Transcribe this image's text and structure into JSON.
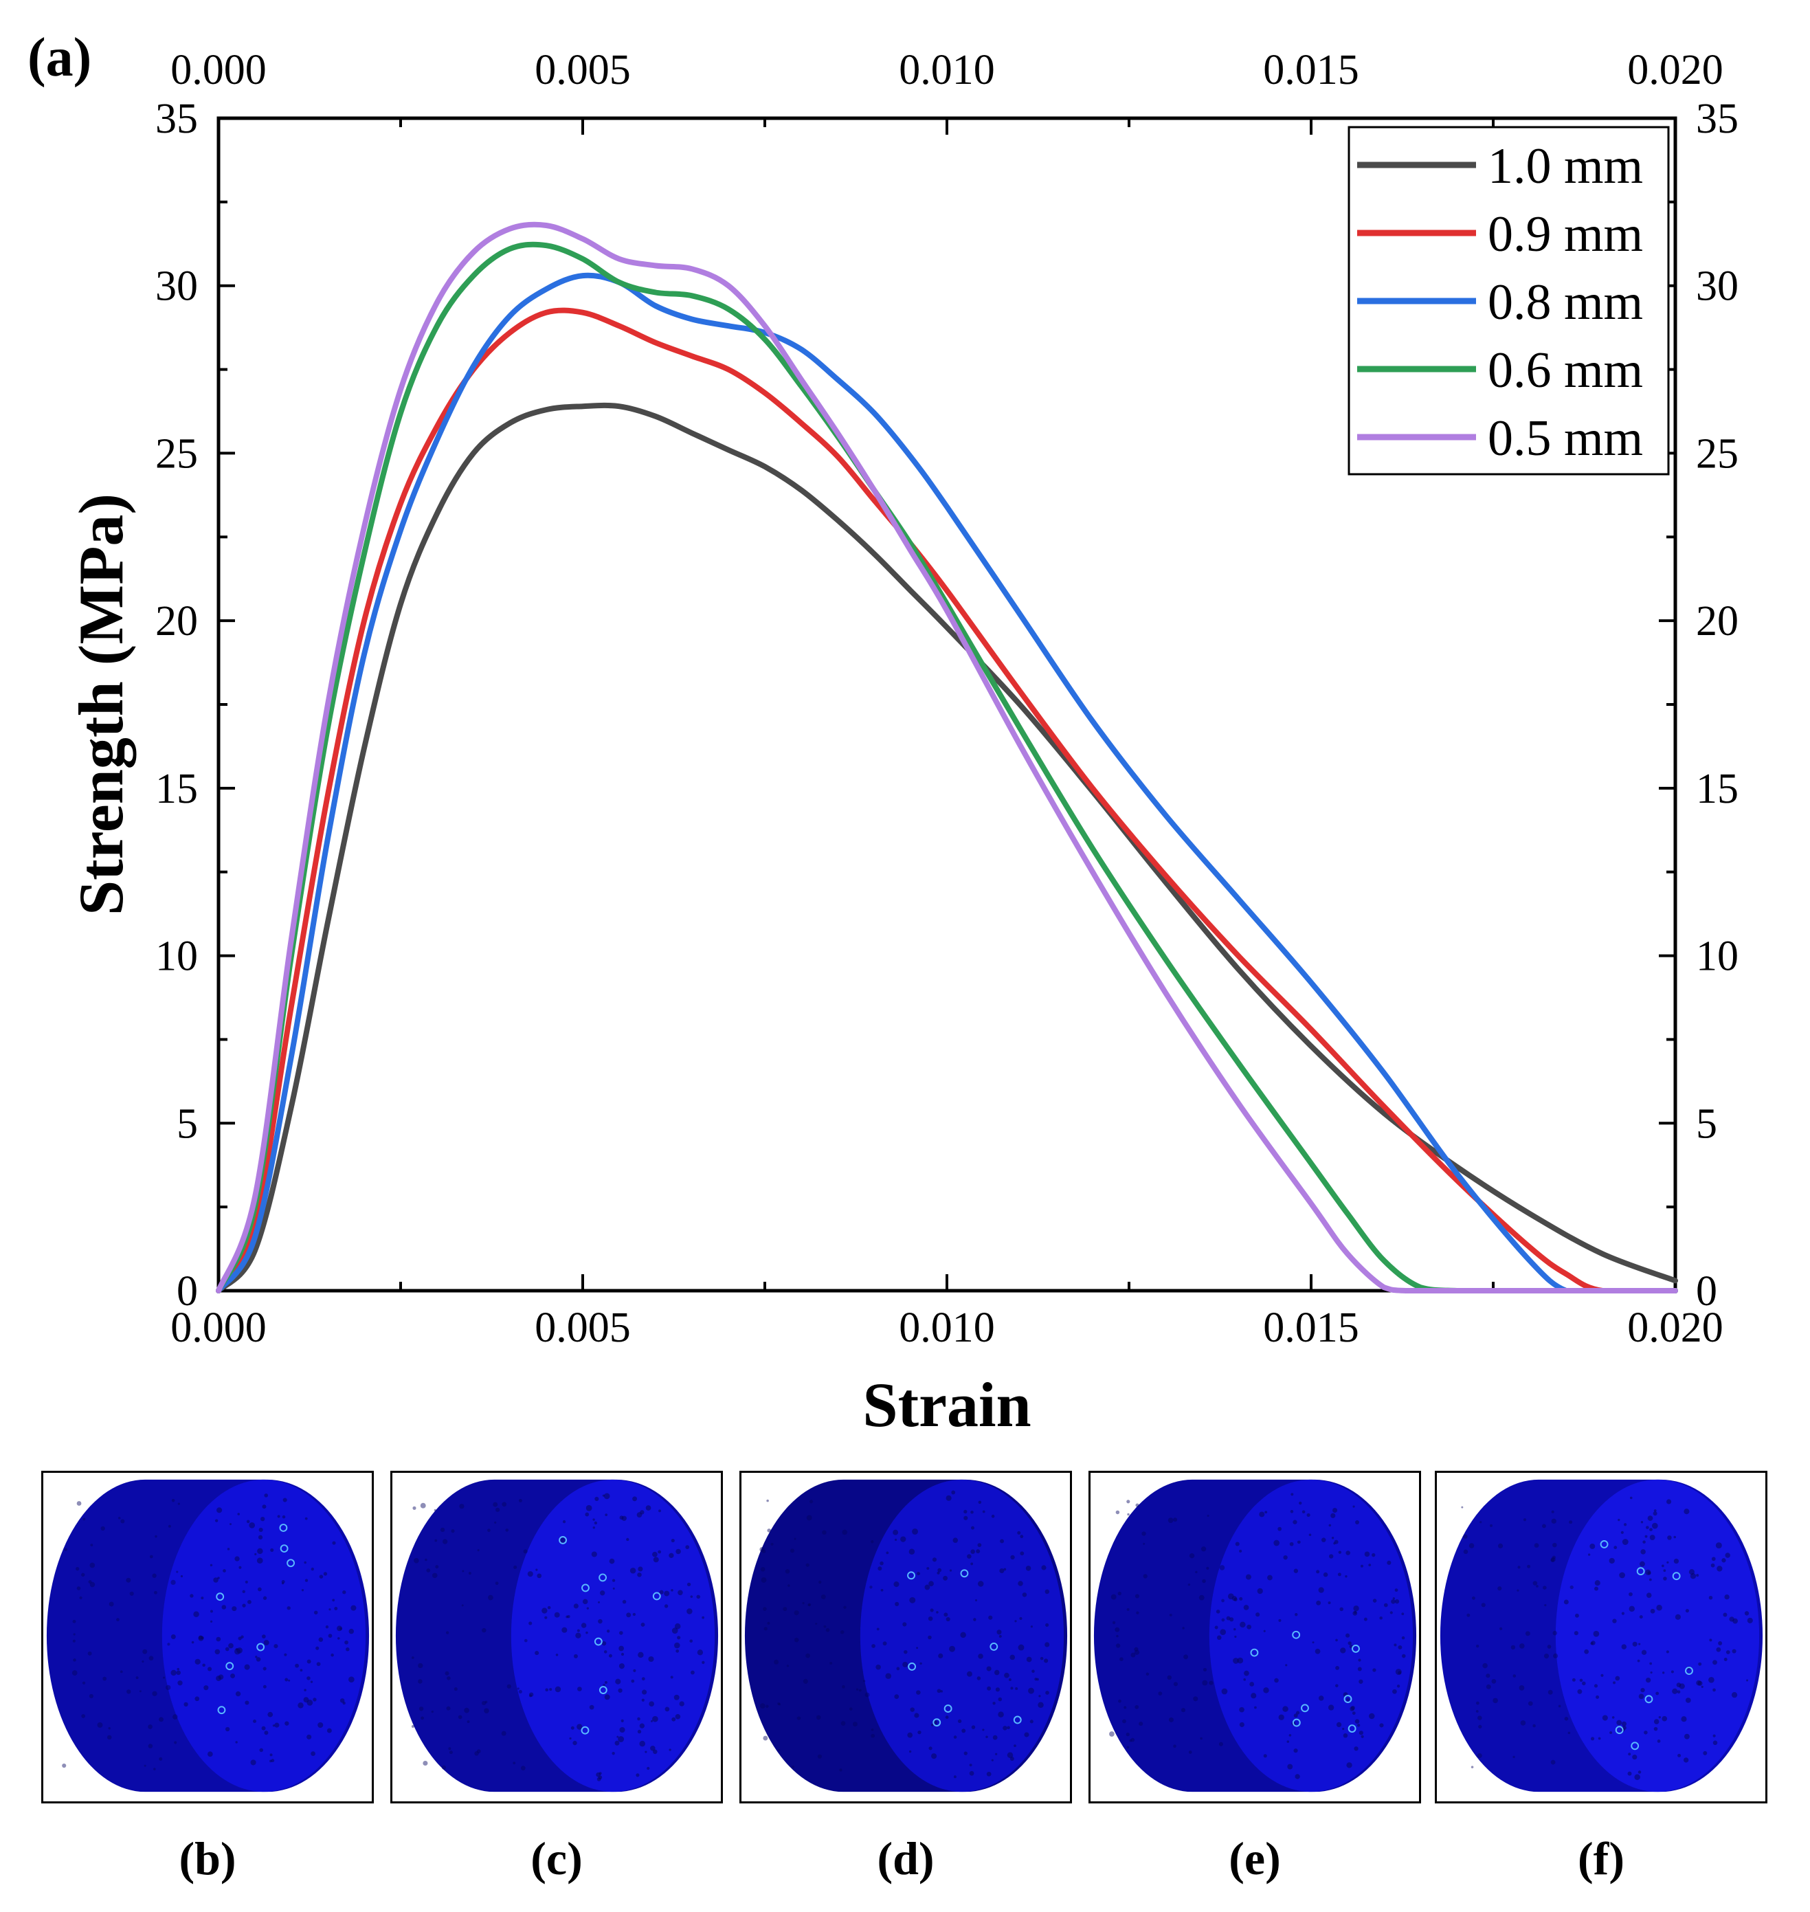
{
  "figure": {
    "panel_a_label": "(a)",
    "panel_labels": [
      "(b)",
      "(c)",
      "(d)",
      "(e)",
      "(f)"
    ]
  },
  "chart_data": {
    "type": "line",
    "title": "",
    "xlabel": "Strain",
    "ylabel": "Strength (MPa)",
    "xlim": [
      0.0,
      0.02
    ],
    "ylim": [
      0,
      35
    ],
    "x_ticks": [
      "0.000",
      "0.005",
      "0.010",
      "0.015",
      "0.020"
    ],
    "y_ticks": [
      "0",
      "5",
      "10",
      "15",
      "20",
      "25",
      "30",
      "35"
    ],
    "mirror_axes": true,
    "grid": false,
    "legend_position": "top-right",
    "series": [
      {
        "name": "1.0 mm",
        "color": "#4a4a4a",
        "x": [
          0,
          0.0005,
          0.001,
          0.0015,
          0.002,
          0.0025,
          0.003,
          0.0035,
          0.004,
          0.0045,
          0.005,
          0.0055,
          0.006,
          0.0065,
          0.007,
          0.0075,
          0.008,
          0.0085,
          0.009,
          0.0095,
          0.01,
          0.011,
          0.012,
          0.013,
          0.014,
          0.015,
          0.016,
          0.017,
          0.018,
          0.019,
          0.02
        ],
        "y": [
          0,
          1.2,
          5.5,
          11.0,
          16.2,
          20.5,
          23.2,
          25.0,
          25.9,
          26.3,
          26.4,
          26.4,
          26.1,
          25.6,
          25.1,
          24.6,
          23.9,
          23.0,
          22.0,
          20.9,
          19.8,
          17.5,
          14.9,
          12.2,
          9.6,
          7.3,
          5.3,
          3.7,
          2.3,
          1.1,
          0.3
        ]
      },
      {
        "name": "0.9 mm",
        "color": "#e03030",
        "x": [
          0,
          0.0005,
          0.001,
          0.0015,
          0.002,
          0.0025,
          0.003,
          0.0035,
          0.004,
          0.0045,
          0.005,
          0.0055,
          0.006,
          0.0065,
          0.007,
          0.0075,
          0.008,
          0.0085,
          0.009,
          0.0095,
          0.01,
          0.011,
          0.012,
          0.013,
          0.014,
          0.015,
          0.016,
          0.017,
          0.018,
          0.0185,
          0.019,
          0.02
        ],
        "y": [
          0,
          2.0,
          8.5,
          14.8,
          20.0,
          23.5,
          25.8,
          27.5,
          28.6,
          29.2,
          29.2,
          28.8,
          28.3,
          27.9,
          27.5,
          26.8,
          25.9,
          24.9,
          23.6,
          22.3,
          20.9,
          17.9,
          15.0,
          12.4,
          10.0,
          7.8,
          5.5,
          3.3,
          1.3,
          0.5,
          0,
          0
        ]
      },
      {
        "name": "0.8 mm",
        "color": "#2a6fe0",
        "x": [
          0,
          0.0005,
          0.001,
          0.0015,
          0.002,
          0.0025,
          0.003,
          0.0035,
          0.004,
          0.0045,
          0.005,
          0.0055,
          0.006,
          0.0065,
          0.007,
          0.0075,
          0.008,
          0.0085,
          0.009,
          0.0095,
          0.01,
          0.011,
          0.012,
          0.013,
          0.014,
          0.015,
          0.016,
          0.017,
          0.018,
          0.0185,
          0.019,
          0.02
        ],
        "y": [
          0,
          1.6,
          7.0,
          13.5,
          19.0,
          22.7,
          25.4,
          27.6,
          29.1,
          29.9,
          30.3,
          30.1,
          29.4,
          29.0,
          28.8,
          28.6,
          28.1,
          27.2,
          26.2,
          24.9,
          23.4,
          20.2,
          17.0,
          14.2,
          11.7,
          9.2,
          6.5,
          3.5,
          0.9,
          0,
          0,
          0
        ]
      },
      {
        "name": "0.6 mm",
        "color": "#2e9e55",
        "x": [
          0,
          0.0005,
          0.001,
          0.0015,
          0.002,
          0.0025,
          0.003,
          0.0035,
          0.004,
          0.0045,
          0.005,
          0.0055,
          0.006,
          0.0065,
          0.007,
          0.0075,
          0.008,
          0.0085,
          0.009,
          0.0095,
          0.01,
          0.011,
          0.012,
          0.013,
          0.014,
          0.015,
          0.0155,
          0.016,
          0.0165,
          0.017,
          0.018,
          0.02
        ],
        "y": [
          0,
          2.5,
          10.0,
          16.8,
          22.0,
          26.2,
          28.8,
          30.3,
          31.1,
          31.2,
          30.8,
          30.1,
          29.8,
          29.7,
          29.3,
          28.4,
          27.0,
          25.5,
          23.9,
          22.3,
          20.5,
          16.8,
          13.2,
          9.9,
          6.8,
          3.8,
          2.3,
          0.9,
          0.1,
          0,
          0,
          0
        ]
      },
      {
        "name": "0.5 mm",
        "color": "#b07ee0",
        "x": [
          0,
          0.0005,
          0.001,
          0.0015,
          0.002,
          0.0025,
          0.003,
          0.0035,
          0.004,
          0.0045,
          0.005,
          0.0055,
          0.006,
          0.0065,
          0.007,
          0.0075,
          0.008,
          0.0085,
          0.009,
          0.0095,
          0.01,
          0.011,
          0.012,
          0.013,
          0.014,
          0.015,
          0.0155,
          0.016,
          0.0163,
          0.017,
          0.018,
          0.02
        ],
        "y": [
          0,
          2.8,
          10.5,
          17.5,
          22.8,
          26.9,
          29.5,
          31.0,
          31.7,
          31.8,
          31.4,
          30.8,
          30.6,
          30.5,
          30.0,
          28.8,
          27.2,
          25.6,
          23.9,
          22.1,
          20.3,
          16.3,
          12.5,
          8.9,
          5.6,
          2.6,
          1.1,
          0.1,
          0,
          0,
          0,
          0
        ]
      }
    ]
  },
  "panels": [
    {
      "label": "(b)",
      "colors": {
        "base": "#1010d8",
        "shade": "#0a0aa8",
        "speck": "#5ab8ff"
      }
    },
    {
      "label": "(c)",
      "colors": {
        "base": "#1212da",
        "shade": "#0a0aa0",
        "speck": "#5ab8ff"
      }
    },
    {
      "label": "(d)",
      "colors": {
        "base": "#0e0ec8",
        "shade": "#070788",
        "speck": "#5ab8ff"
      }
    },
    {
      "label": "(e)",
      "colors": {
        "base": "#1010d4",
        "shade": "#0909a0",
        "speck": "#5ab8ff"
      }
    },
    {
      "label": "(f)",
      "colors": {
        "base": "#1414e0",
        "shade": "#0b0bb0",
        "speck": "#5ab8ff"
      }
    }
  ]
}
